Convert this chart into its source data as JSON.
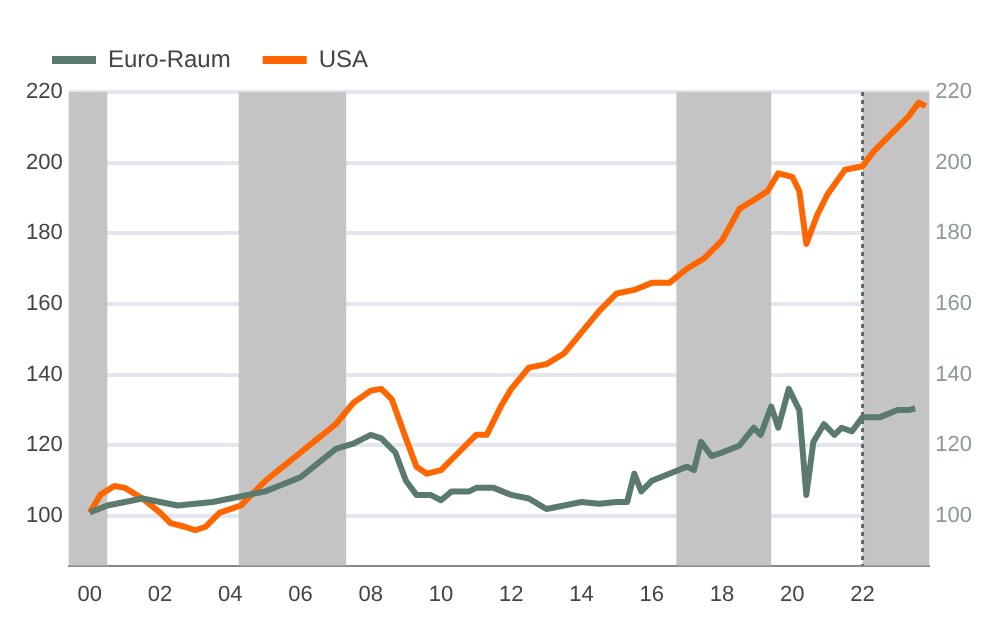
{
  "chart_data": {
    "type": "line",
    "legend": "top",
    "grid": "y",
    "xlim": [
      1999.4,
      2023.9
    ],
    "xticks": [
      {
        "value": 2000,
        "label": "00"
      },
      {
        "value": 2002,
        "label": "02"
      },
      {
        "value": 2004,
        "label": "04"
      },
      {
        "value": 2006,
        "label": "06"
      },
      {
        "value": 2008,
        "label": "08"
      },
      {
        "value": 2010,
        "label": "10"
      },
      {
        "value": 2012,
        "label": "12"
      },
      {
        "value": 2014,
        "label": "14"
      },
      {
        "value": 2016,
        "label": "16"
      },
      {
        "value": 2018,
        "label": "18"
      },
      {
        "value": 2020,
        "label": "20"
      },
      {
        "value": 2022,
        "label": "22"
      }
    ],
    "ylim": [
      86,
      220
    ],
    "yticks": [
      100,
      120,
      140,
      160,
      180,
      200,
      220
    ],
    "y2lim": [
      86,
      220
    ],
    "y2ticks": [
      100,
      120,
      140,
      160,
      180,
      200,
      220
    ],
    "series": [
      {
        "name": "Euro-Raum",
        "color": "#5a7a6e",
        "x": [
          2000,
          2000.5,
          2001,
          2001.5,
          2002,
          2002.5,
          2003,
          2003.5,
          2004,
          2004.5,
          2005,
          2005.5,
          2006,
          2006.5,
          2007,
          2007.5,
          2008,
          2008.3,
          2008.7,
          2009,
          2009.3,
          2009.7,
          2010,
          2010.3,
          2010.8,
          2011,
          2011.5,
          2012,
          2012.5,
          2013,
          2013.5,
          2014,
          2014.5,
          2015,
          2015.3,
          2015.5,
          2015.7,
          2016,
          2016.5,
          2017,
          2017.2,
          2017.4,
          2017.7,
          2018,
          2018.5,
          2018.9,
          2019.1,
          2019.4,
          2019.6,
          2019.9,
          2020.2,
          2020.4,
          2020.6,
          2020.9,
          2021.2,
          2021.4,
          2021.7,
          2022,
          2022.5,
          2023,
          2023.3,
          2023.5
        ],
        "values": [
          101,
          103,
          104,
          105,
          104,
          103,
          103.5,
          104,
          105,
          106,
          107,
          109,
          111,
          115,
          119,
          120.5,
          123,
          122,
          118,
          110,
          106,
          106,
          104.5,
          107,
          107,
          108,
          108,
          106,
          105,
          102,
          103,
          104,
          103.5,
          104,
          104,
          112,
          107,
          110,
          112,
          114,
          113,
          121,
          117,
          118,
          120,
          125,
          123,
          131,
          125,
          136,
          130,
          106,
          121,
          126,
          123,
          125,
          124,
          128,
          128,
          130,
          130,
          130.5
        ]
      },
      {
        "name": "USA",
        "color": "#ff6600",
        "x": [
          2000,
          2000.3,
          2000.7,
          2001,
          2001.5,
          2002,
          2002.3,
          2002.7,
          2003,
          2003.3,
          2003.7,
          2004,
          2004.3,
          2004.7,
          2005,
          2005.5,
          2006,
          2006.5,
          2007,
          2007.5,
          2008,
          2008.3,
          2008.6,
          2009,
          2009.3,
          2009.6,
          2010,
          2010.5,
          2011,
          2011.3,
          2011.7,
          2012,
          2012.5,
          2013,
          2013.5,
          2014,
          2014.5,
          2015,
          2015.5,
          2016,
          2016.5,
          2017,
          2017.5,
          2018,
          2018.5,
          2019,
          2019.3,
          2019.6,
          2020,
          2020.2,
          2020.4,
          2020.7,
          2021,
          2021.5,
          2022,
          2022.3,
          2022.7,
          2023,
          2023.3,
          2023.6,
          2023.8
        ],
        "values": [
          101,
          106,
          108.5,
          108,
          105,
          101,
          98,
          97,
          96,
          97,
          101,
          102,
          103,
          107,
          110,
          114,
          118,
          122,
          126,
          132,
          135.5,
          136,
          133,
          122,
          114,
          112,
          113,
          118,
          123,
          123,
          131,
          136,
          142,
          143,
          146,
          152,
          158,
          163,
          164,
          166,
          166,
          170,
          173,
          178,
          187,
          190,
          192,
          197,
          196,
          192,
          177,
          185,
          191,
          198,
          199,
          203,
          207,
          210,
          213,
          217,
          216
        ]
      }
    ],
    "bands": [
      {
        "axis": "x",
        "from": 1999.4,
        "to": 2000.5,
        "color": "#c4c4c4"
      },
      {
        "axis": "x",
        "from": 2004.24,
        "to": 2007.3,
        "color": "#c4c4c4"
      },
      {
        "axis": "x",
        "from": 2016.7,
        "to": 2019.4,
        "color": "#c4c4c4"
      },
      {
        "axis": "x",
        "from": 2022,
        "to": 2023.9,
        "color": "#c4c4c4"
      }
    ],
    "ref_lines": [
      {
        "axis": "x",
        "value": 2022,
        "color": "#5a6a66",
        "line_style": "dotted"
      }
    ]
  }
}
